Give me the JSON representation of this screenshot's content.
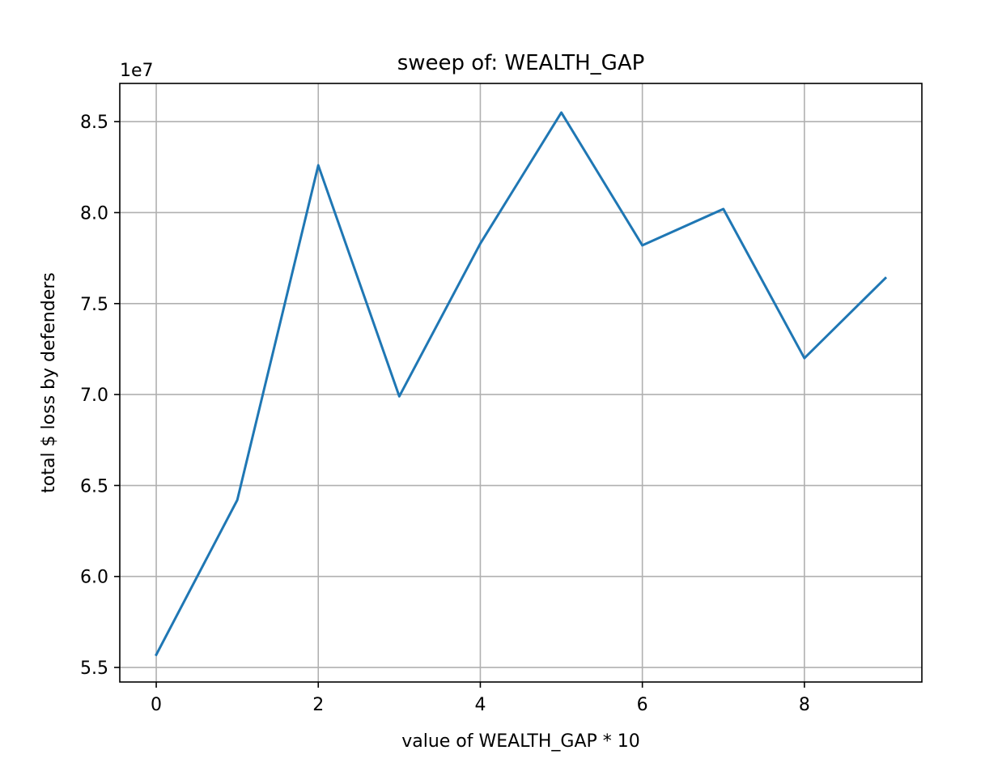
{
  "chart_data": {
    "type": "line",
    "title": "sweep of: WEALTH_GAP",
    "xlabel": "value of WEALTH_GAP * 10",
    "ylabel": "total $ loss by defenders",
    "y_offset_label": "1e7",
    "y_scale_factor": 10000000,
    "xlim": [
      -0.45,
      9.45
    ],
    "ylim": [
      5.42,
      8.71
    ],
    "xticks": [
      0,
      2,
      4,
      6,
      8
    ],
    "yticks": [
      5.5,
      6.0,
      6.5,
      7.0,
      7.5,
      8.0,
      8.5
    ],
    "xtick_labels": [
      "0",
      "2",
      "4",
      "6",
      "8"
    ],
    "ytick_labels": [
      "5.5",
      "6.0",
      "6.5",
      "7.0",
      "7.5",
      "8.0",
      "8.5"
    ],
    "grid": true,
    "legend": "none",
    "series": [
      {
        "color": "#1f77b4",
        "x": [
          0,
          1,
          2,
          3,
          4,
          5,
          6,
          7,
          8,
          9
        ],
        "y": [
          5.57,
          6.42,
          8.26,
          6.99,
          7.83,
          8.55,
          7.82,
          8.02,
          7.2,
          7.64
        ]
      }
    ]
  }
}
